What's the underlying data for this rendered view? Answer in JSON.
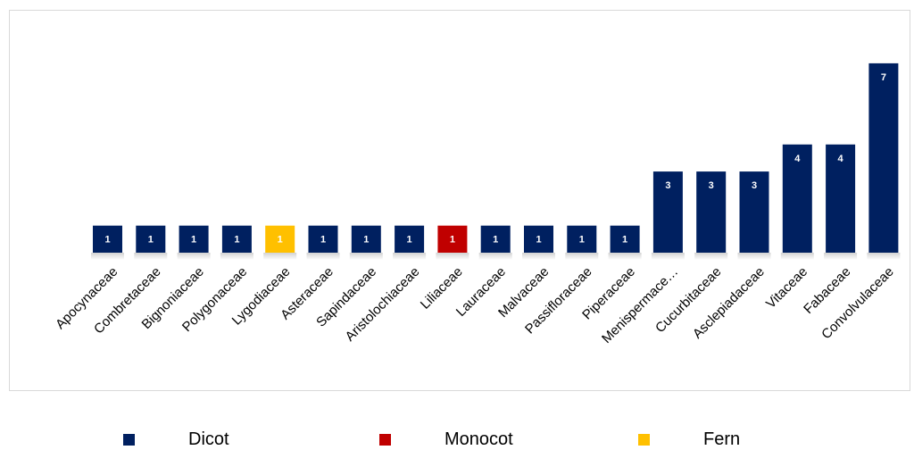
{
  "chart_data": {
    "type": "bar",
    "categories": [
      "Apocynaceae",
      "Combretaceae",
      "Bignoniaceae",
      "Polygonaceae",
      "Lygodiaceae",
      "Asteraceae",
      "Sapindaceae",
      "Aristolochiaceae",
      "Liliaceae",
      "Lauraceae",
      "Malvaceae",
      "Passifloraceae",
      "Piperaceae",
      "Menispermace…",
      "Cucurbitaceae",
      "Asclepiadaceae",
      "Vitaceae",
      "Fabaceae",
      "Convolvulaceae"
    ],
    "values": [
      1,
      1,
      1,
      1,
      1,
      1,
      1,
      1,
      1,
      1,
      1,
      1,
      1,
      3,
      3,
      3,
      4,
      4,
      7
    ],
    "groups": [
      "Dicot",
      "Dicot",
      "Dicot",
      "Dicot",
      "Fern",
      "Dicot",
      "Dicot",
      "Dicot",
      "Monocot",
      "Dicot",
      "Dicot",
      "Dicot",
      "Dicot",
      "Dicot",
      "Dicot",
      "Dicot",
      "Dicot",
      "Dicot",
      "Dicot"
    ],
    "ylim": [
      0,
      7
    ],
    "grid": false,
    "legend_position": "bottom",
    "title": "",
    "xlabel": "",
    "ylabel": ""
  },
  "legend": [
    {
      "label": "Dicot",
      "color": "#002060"
    },
    {
      "label": "Monocot",
      "color": "#c00000"
    },
    {
      "label": "Fern",
      "color": "#ffc000"
    }
  ],
  "colors": {
    "Dicot": "#002060",
    "Monocot": "#c00000",
    "Fern": "#ffc000"
  }
}
